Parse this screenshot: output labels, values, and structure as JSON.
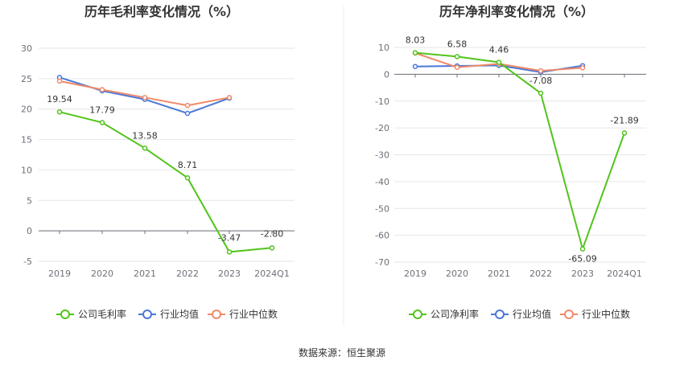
{
  "source_label": "数据来源：恒生聚源",
  "chart_data": [
    {
      "type": "line",
      "title": "历年毛利率变化情况（%）",
      "categories": [
        "2019",
        "2020",
        "2021",
        "2022",
        "2023",
        "2024Q1"
      ],
      "ylim": [
        -5,
        30
      ],
      "yticks": [
        -5,
        0,
        5,
        10,
        15,
        20,
        25,
        30
      ],
      "grid": true,
      "legend": "bottom",
      "series": [
        {
          "name": "公司毛利率",
          "color": "#52c41a",
          "values": [
            19.54,
            17.79,
            13.58,
            8.71,
            -3.47,
            -2.8
          ],
          "labels": [
            "19.54",
            "17.79",
            "13.58",
            "8.71",
            "-3.47",
            "-2.80"
          ]
        },
        {
          "name": "行业均值",
          "color": "#4a78d6",
          "values": [
            25.2,
            23.0,
            21.6,
            19.3,
            21.8,
            null
          ]
        },
        {
          "name": "行业中位数",
          "color": "#f08a6a",
          "values": [
            24.6,
            23.2,
            21.9,
            20.6,
            21.9,
            null
          ]
        }
      ]
    },
    {
      "type": "line",
      "title": "历年净利率变化情况（%）",
      "categories": [
        "2019",
        "2020",
        "2021",
        "2022",
        "2023",
        "2024Q1"
      ],
      "ylim": [
        -70,
        10
      ],
      "yticks": [
        -70,
        -60,
        -50,
        -40,
        -30,
        -20,
        -10,
        0,
        10
      ],
      "grid": true,
      "legend": "bottom",
      "series": [
        {
          "name": "公司净利率",
          "color": "#52c41a",
          "values": [
            8.03,
            6.58,
            4.46,
            -7.08,
            -65.09,
            -21.89
          ],
          "labels": [
            "8.03",
            "6.58",
            "4.46",
            "-7.08",
            "-65.09",
            "-21.89"
          ]
        },
        {
          "name": "行业均值",
          "color": "#4a78d6",
          "values": [
            2.9,
            3.1,
            3.3,
            0.8,
            3.2,
            null
          ]
        },
        {
          "name": "行业中位数",
          "color": "#f08a6a",
          "values": [
            7.9,
            2.6,
            3.9,
            1.3,
            2.4,
            null
          ]
        }
      ]
    }
  ]
}
